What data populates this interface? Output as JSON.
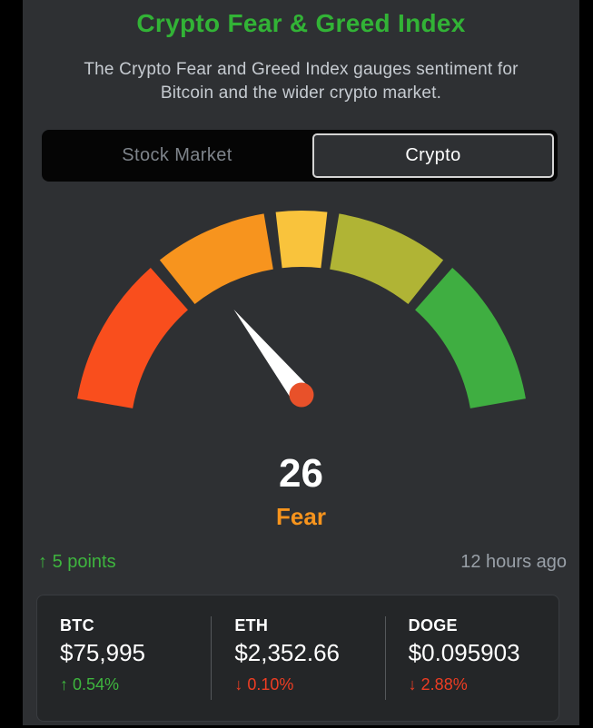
{
  "header": {
    "title": "Crypto Fear & Greed Index",
    "description_line1": "The Crypto Fear and Greed Index gauges sentiment for",
    "description_line2": "Bitcoin and the wider crypto market."
  },
  "toggle": {
    "options": [
      {
        "label": "Stock Market",
        "selected": false
      },
      {
        "label": "Crypto",
        "selected": true
      }
    ]
  },
  "chart_data": {
    "type": "gauge",
    "value": 26,
    "label": "Fear",
    "min": 0,
    "max": 100,
    "start_angle": 170,
    "end_angle": 10,
    "segments": [
      {
        "from": 0,
        "to": 25,
        "color": "#f94e1d"
      },
      {
        "from": 25,
        "to": 45,
        "color": "#f7941e"
      },
      {
        "from": 45,
        "to": 55,
        "color": "#f9c33c"
      },
      {
        "from": 55,
        "to": 75,
        "color": "#b0b435"
      },
      {
        "from": 75,
        "to": 100,
        "color": "#3fae41"
      }
    ],
    "needle_color": "#ffffff",
    "pivot_color": "#e8512a",
    "value_color": "#ffffff",
    "label_color": "#f7941d"
  },
  "status": {
    "arrow": "↑",
    "change": "5 points",
    "updated": "12 hours ago"
  },
  "prices": {
    "items": [
      {
        "symbol": "BTC",
        "price": "$75,995",
        "arrow": "↑",
        "change": "0.54%",
        "direction": "up"
      },
      {
        "symbol": "ETH",
        "price": "$2,352.66",
        "arrow": "↓",
        "change": "0.10%",
        "direction": "down"
      },
      {
        "symbol": "DOGE",
        "price": "$0.095903",
        "arrow": "↓",
        "change": "2.88%",
        "direction": "down"
      }
    ]
  },
  "colors": {
    "title_green": "#32b336",
    "up_green": "#3eb53e",
    "down_red": "#ee3d23",
    "fear_orange": "#f7941d",
    "panel_bg": "#2e3033",
    "card_bg": "#242628"
  }
}
